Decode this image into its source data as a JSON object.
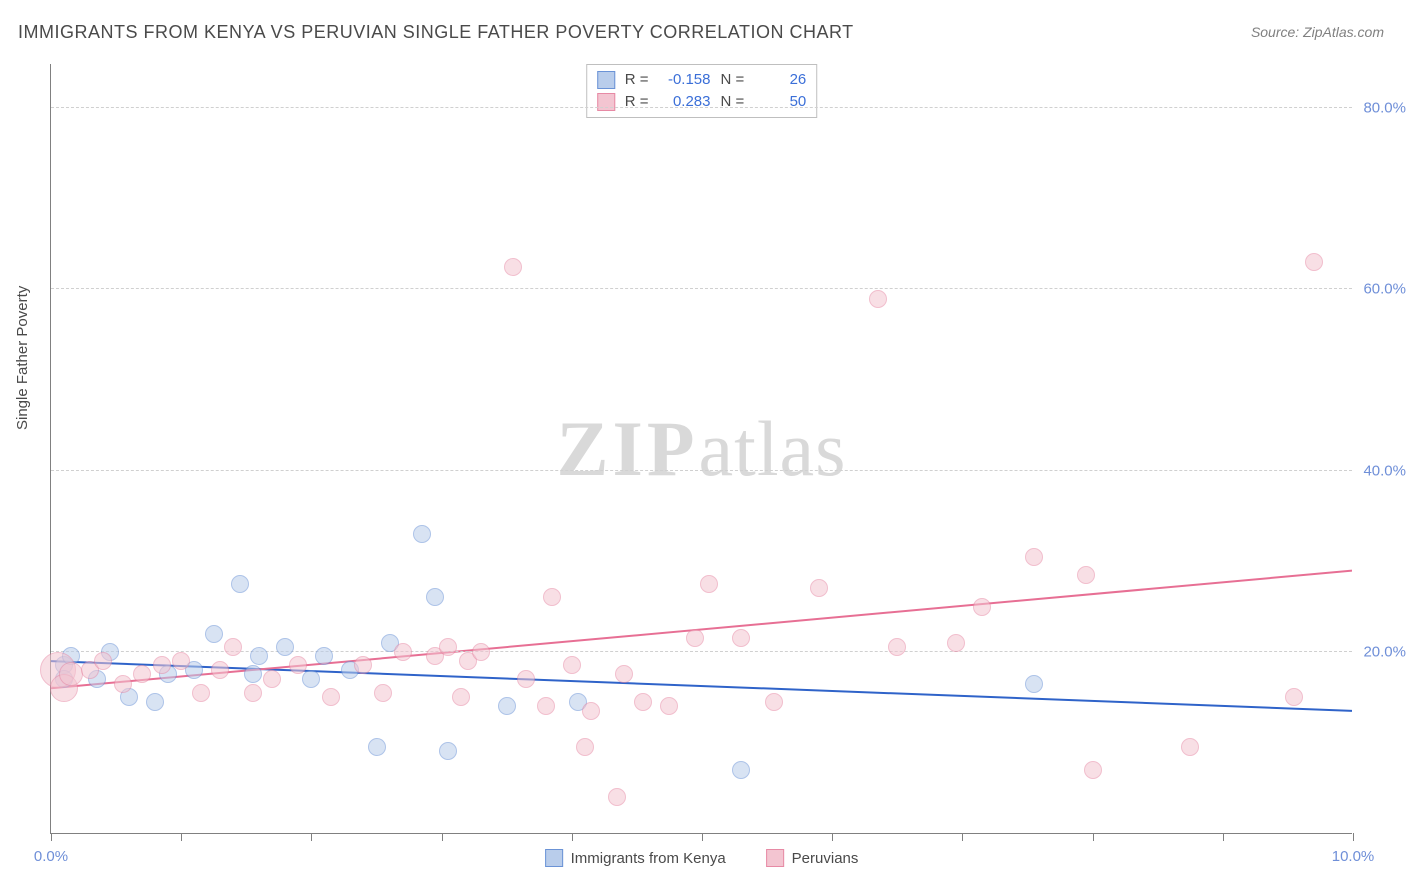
{
  "title": "IMMIGRANTS FROM KENYA VS PERUVIAN SINGLE FATHER POVERTY CORRELATION CHART",
  "source": "Source: ZipAtlas.com",
  "yaxis_title": "Single Father Poverty",
  "watermark": {
    "bold": "ZIP",
    "rest": "atlas"
  },
  "chart": {
    "type": "scatter",
    "xlim": [
      0,
      10
    ],
    "ylim": [
      0,
      85
    ],
    "x_ticks": [
      0,
      1,
      2,
      3,
      4,
      5,
      6,
      7,
      8,
      9,
      10
    ],
    "x_labels_shown": {
      "0": "0.0%",
      "10": "10.0%"
    },
    "y_gridlines": [
      20,
      40,
      60,
      80
    ],
    "y_labels": [
      "20.0%",
      "40.0%",
      "60.0%",
      "80.0%"
    ],
    "grid_color": "#d0d0d0",
    "axis_color": "#808080",
    "label_color": "#6f8fd8",
    "background_color": "#ffffff"
  },
  "series": [
    {
      "key": "kenya",
      "name": "Immigrants from Kenya",
      "fill": "#b9cdeb",
      "stroke": "#6b93d6",
      "fill_opacity": 0.55,
      "trend": {
        "color": "#2f63c9",
        "width": 2,
        "y_at_x0": 19.0,
        "y_at_xmax": 13.5
      },
      "stats": {
        "R": "-0.158",
        "N": "26"
      },
      "points": [
        {
          "x": 0.1,
          "y": 18.5,
          "r": 9
        },
        {
          "x": 0.1,
          "y": 17.0,
          "r": 9
        },
        {
          "x": 0.15,
          "y": 19.5,
          "r": 9
        },
        {
          "x": 0.35,
          "y": 17.0,
          "r": 9
        },
        {
          "x": 0.45,
          "y": 20.0,
          "r": 9
        },
        {
          "x": 0.6,
          "y": 15.0,
          "r": 9
        },
        {
          "x": 0.8,
          "y": 14.5,
          "r": 9
        },
        {
          "x": 0.9,
          "y": 17.5,
          "r": 9
        },
        {
          "x": 1.1,
          "y": 18.0,
          "r": 9
        },
        {
          "x": 1.25,
          "y": 22.0,
          "r": 9
        },
        {
          "x": 1.45,
          "y": 27.5,
          "r": 9
        },
        {
          "x": 1.55,
          "y": 17.5,
          "r": 9
        },
        {
          "x": 1.6,
          "y": 19.5,
          "r": 9
        },
        {
          "x": 1.8,
          "y": 20.5,
          "r": 9
        },
        {
          "x": 2.0,
          "y": 17.0,
          "r": 9
        },
        {
          "x": 2.1,
          "y": 19.5,
          "r": 9
        },
        {
          "x": 2.3,
          "y": 18.0,
          "r": 9
        },
        {
          "x": 2.5,
          "y": 9.5,
          "r": 9
        },
        {
          "x": 2.6,
          "y": 21.0,
          "r": 9
        },
        {
          "x": 2.85,
          "y": 33.0,
          "r": 9
        },
        {
          "x": 2.95,
          "y": 26.0,
          "r": 9
        },
        {
          "x": 3.05,
          "y": 9.0,
          "r": 9
        },
        {
          "x": 3.5,
          "y": 14.0,
          "r": 9
        },
        {
          "x": 4.05,
          "y": 14.5,
          "r": 9
        },
        {
          "x": 5.3,
          "y": 7.0,
          "r": 9
        },
        {
          "x": 7.55,
          "y": 16.5,
          "r": 9
        }
      ]
    },
    {
      "key": "peruvians",
      "name": "Peruvians",
      "fill": "#f3c5d1",
      "stroke": "#e78aa5",
      "fill_opacity": 0.55,
      "trend": {
        "color": "#e76f94",
        "width": 2,
        "y_at_x0": 16.0,
        "y_at_xmax": 29.0
      },
      "stats": {
        "R": "0.283",
        "N": "50"
      },
      "points": [
        {
          "x": 0.05,
          "y": 18.0,
          "r": 18
        },
        {
          "x": 0.1,
          "y": 16.0,
          "r": 14
        },
        {
          "x": 0.15,
          "y": 17.5,
          "r": 12
        },
        {
          "x": 0.3,
          "y": 18.0,
          "r": 9
        },
        {
          "x": 0.4,
          "y": 19.0,
          "r": 9
        },
        {
          "x": 0.55,
          "y": 16.5,
          "r": 9
        },
        {
          "x": 0.7,
          "y": 17.5,
          "r": 9
        },
        {
          "x": 0.85,
          "y": 18.5,
          "r": 9
        },
        {
          "x": 1.0,
          "y": 19.0,
          "r": 9
        },
        {
          "x": 1.15,
          "y": 15.5,
          "r": 9
        },
        {
          "x": 1.3,
          "y": 18.0,
          "r": 9
        },
        {
          "x": 1.4,
          "y": 20.5,
          "r": 9
        },
        {
          "x": 1.55,
          "y": 15.5,
          "r": 9
        },
        {
          "x": 1.7,
          "y": 17.0,
          "r": 9
        },
        {
          "x": 1.9,
          "y": 18.5,
          "r": 9
        },
        {
          "x": 2.15,
          "y": 15.0,
          "r": 9
        },
        {
          "x": 2.4,
          "y": 18.5,
          "r": 9
        },
        {
          "x": 2.55,
          "y": 15.5,
          "r": 9
        },
        {
          "x": 2.7,
          "y": 20.0,
          "r": 9
        },
        {
          "x": 2.95,
          "y": 19.5,
          "r": 9
        },
        {
          "x": 3.05,
          "y": 20.5,
          "r": 9
        },
        {
          "x": 3.15,
          "y": 15.0,
          "r": 9
        },
        {
          "x": 3.2,
          "y": 19.0,
          "r": 9
        },
        {
          "x": 3.3,
          "y": 20.0,
          "r": 9
        },
        {
          "x": 3.55,
          "y": 62.5,
          "r": 9
        },
        {
          "x": 3.65,
          "y": 17.0,
          "r": 9
        },
        {
          "x": 3.8,
          "y": 14.0,
          "r": 9
        },
        {
          "x": 3.85,
          "y": 26.0,
          "r": 9
        },
        {
          "x": 4.0,
          "y": 18.5,
          "r": 9
        },
        {
          "x": 4.1,
          "y": 9.5,
          "r": 9
        },
        {
          "x": 4.15,
          "y": 13.5,
          "r": 9
        },
        {
          "x": 4.35,
          "y": 4.0,
          "r": 9
        },
        {
          "x": 4.4,
          "y": 17.5,
          "r": 9
        },
        {
          "x": 4.55,
          "y": 14.5,
          "r": 9
        },
        {
          "x": 4.75,
          "y": 14.0,
          "r": 9
        },
        {
          "x": 4.95,
          "y": 21.5,
          "r": 9
        },
        {
          "x": 5.05,
          "y": 27.5,
          "r": 9
        },
        {
          "x": 5.3,
          "y": 21.5,
          "r": 9
        },
        {
          "x": 5.55,
          "y": 14.5,
          "r": 9
        },
        {
          "x": 5.9,
          "y": 27.0,
          "r": 9
        },
        {
          "x": 6.35,
          "y": 59.0,
          "r": 9
        },
        {
          "x": 6.5,
          "y": 20.5,
          "r": 9
        },
        {
          "x": 6.95,
          "y": 21.0,
          "r": 9
        },
        {
          "x": 7.15,
          "y": 25.0,
          "r": 9
        },
        {
          "x": 7.55,
          "y": 30.5,
          "r": 9
        },
        {
          "x": 7.95,
          "y": 28.5,
          "r": 9
        },
        {
          "x": 8.0,
          "y": 7.0,
          "r": 9
        },
        {
          "x": 8.75,
          "y": 9.5,
          "r": 9
        },
        {
          "x": 9.55,
          "y": 15.0,
          "r": 9
        },
        {
          "x": 9.7,
          "y": 63.0,
          "r": 9
        }
      ]
    }
  ],
  "stats_legend_labels": {
    "R": "R =",
    "N": "N ="
  },
  "bottom_legend": [
    "Immigrants from Kenya",
    "Peruvians"
  ]
}
